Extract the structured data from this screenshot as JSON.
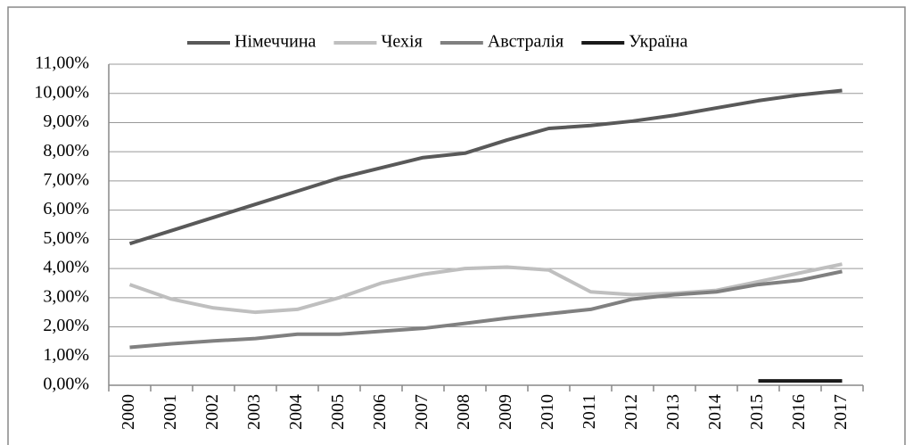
{
  "chart_data": {
    "type": "line",
    "categories": [
      "2000",
      "2001",
      "2002",
      "2003",
      "2004",
      "2005",
      "2006",
      "2007",
      "2008",
      "2009",
      "2010",
      "2011",
      "2012",
      "2013",
      "2014",
      "2015",
      "2016",
      "2017"
    ],
    "series": [
      {
        "name": "Німеччина",
        "color": "#595959",
        "values": [
          4.85,
          5.3,
          5.75,
          6.2,
          6.65,
          7.1,
          7.45,
          7.8,
          7.95,
          8.4,
          8.8,
          8.9,
          9.05,
          9.25,
          9.5,
          9.75,
          9.95,
          10.1
        ]
      },
      {
        "name": "Чехія",
        "color": "#bfbfbf",
        "values": [
          3.45,
          2.95,
          2.65,
          2.5,
          2.6,
          3.0,
          3.5,
          3.8,
          4.0,
          4.05,
          3.95,
          3.2,
          3.1,
          3.15,
          3.25,
          3.55,
          3.85,
          4.15
        ]
      },
      {
        "name": "Австралія",
        "color": "#808080",
        "values": [
          1.3,
          1.42,
          1.52,
          1.6,
          1.75,
          1.75,
          1.85,
          1.95,
          2.12,
          2.3,
          2.45,
          2.6,
          2.95,
          3.1,
          3.2,
          3.45,
          3.6,
          3.9
        ]
      },
      {
        "name": "Україна",
        "color": "#1a1a1a",
        "values": [
          null,
          null,
          null,
          null,
          null,
          null,
          null,
          null,
          null,
          null,
          null,
          null,
          null,
          null,
          null,
          0.15,
          0.15,
          0.15
        ]
      }
    ],
    "ylim": [
      0,
      11
    ],
    "yticks": [
      {
        "value": 0,
        "label": "0,00%"
      },
      {
        "value": 1,
        "label": "1,00%"
      },
      {
        "value": 2,
        "label": "2,00%"
      },
      {
        "value": 3,
        "label": "3,00%"
      },
      {
        "value": 4,
        "label": "4,00%"
      },
      {
        "value": 5,
        "label": "5,00%"
      },
      {
        "value": 6,
        "label": "6,00%"
      },
      {
        "value": 7,
        "label": "7,00%"
      },
      {
        "value": 8,
        "label": "8,00%"
      },
      {
        "value": 9,
        "label": "9,00%"
      },
      {
        "value": 10,
        "label": "10,00%"
      },
      {
        "value": 11,
        "label": "11,00%"
      }
    ],
    "grid": true,
    "legend": "top"
  }
}
